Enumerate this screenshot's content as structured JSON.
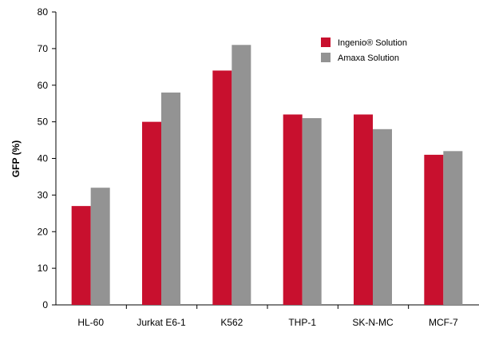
{
  "chart_data": {
    "type": "bar",
    "title": "",
    "xlabel": "",
    "ylabel": "GFP (%)",
    "ylim": [
      0,
      80
    ],
    "yticks": [
      0,
      10,
      20,
      30,
      40,
      50,
      60,
      70,
      80
    ],
    "grid": false,
    "legend_placement": "top-right",
    "categories": [
      "HL-60",
      "Jurkat E6-1",
      "K562",
      "THP-1",
      "SK-N-MC",
      "MCF-7"
    ],
    "series": [
      {
        "name": "Ingenio® Solution",
        "color": "#c8102e",
        "values": [
          27,
          50,
          64,
          52,
          52,
          41
        ]
      },
      {
        "name": "Amaxa Solution",
        "color": "#939393",
        "values": [
          32,
          58,
          71,
          51,
          48,
          42
        ]
      }
    ]
  }
}
